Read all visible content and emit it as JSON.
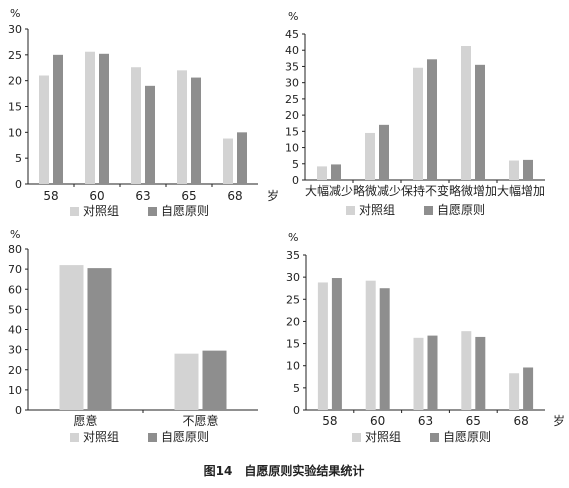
{
  "caption": "图14　自愿原则实验结果统计",
  "colors": {
    "control": "#d3d3d3",
    "voluntary": "#8e8e8e",
    "axis": "#222222"
  },
  "legend": [
    "对照组",
    "自愿原则"
  ],
  "chart_data": [
    {
      "type": "bar",
      "unit_label": "%",
      "x_unit_label": "岁",
      "categories": [
        "58",
        "60",
        "63",
        "65",
        "68"
      ],
      "series": [
        {
          "name": "对照组",
          "values": [
            21,
            25.6,
            22.6,
            22,
            8.8
          ]
        },
        {
          "name": "自愿原则",
          "values": [
            25,
            25.2,
            19,
            20.6,
            10
          ]
        }
      ],
      "ylim": [
        0,
        30
      ],
      "yticks": [
        0,
        5,
        10,
        15,
        20,
        25,
        30
      ],
      "grid": false,
      "legend_position": "bottom"
    },
    {
      "type": "bar",
      "unit_label": "%",
      "categories": [
        "大幅减少",
        "略微减少",
        "保持不变",
        "略微增加",
        "大幅增加"
      ],
      "series": [
        {
          "name": "对照组",
          "values": [
            4.2,
            14.5,
            34.6,
            41.3,
            6
          ]
        },
        {
          "name": "自愿原则",
          "values": [
            4.8,
            17,
            37.2,
            35.5,
            6.2
          ]
        }
      ],
      "ylim": [
        0,
        45
      ],
      "yticks": [
        0,
        5,
        10,
        15,
        20,
        25,
        30,
        35,
        40,
        45
      ],
      "grid": false,
      "legend_position": "bottom"
    },
    {
      "type": "bar",
      "unit_label": "%",
      "categories": [
        "愿意",
        "不愿意"
      ],
      "series": [
        {
          "name": "对照组",
          "values": [
            72,
            28
          ]
        },
        {
          "name": "自愿原则",
          "values": [
            70.5,
            29.5
          ]
        }
      ],
      "ylim": [
        0,
        80
      ],
      "yticks": [
        0,
        10,
        20,
        30,
        40,
        50,
        60,
        70,
        80
      ],
      "grid": false,
      "legend_position": "bottom"
    },
    {
      "type": "bar",
      "unit_label": "%",
      "x_unit_label": "岁",
      "categories": [
        "58",
        "60",
        "63",
        "65",
        "68"
      ],
      "series": [
        {
          "name": "对照组",
          "values": [
            28.8,
            29.2,
            16.3,
            17.8,
            8.3
          ]
        },
        {
          "name": "自愿原则",
          "values": [
            29.8,
            27.5,
            16.8,
            16.5,
            9.6
          ]
        }
      ],
      "ylim": [
        0,
        35
      ],
      "yticks": [
        0,
        5,
        10,
        15,
        20,
        25,
        30,
        35
      ],
      "grid": false,
      "legend_position": "bottom"
    }
  ]
}
